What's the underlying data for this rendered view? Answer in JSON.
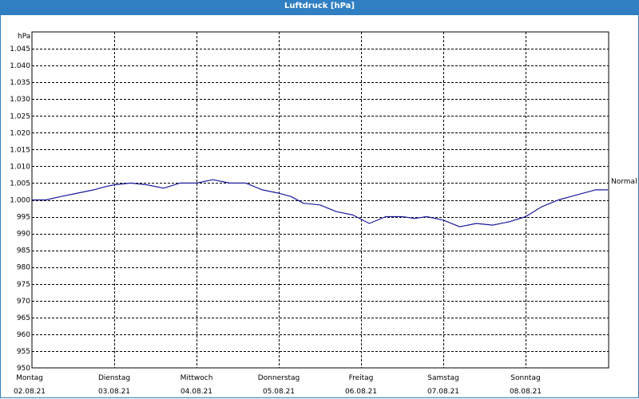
{
  "window": {
    "title": "Luftdruck [hPa]"
  },
  "colors": {
    "titlebar": "#2f7fc2",
    "series": "#1a1a9c",
    "grid": "#000000"
  },
  "chart_data": {
    "type": "line",
    "title": "Luftdruck [hPa]",
    "ylabel": "hPa",
    "ylim": [
      950,
      1050
    ],
    "yticks": [
      "1.045",
      "1.040",
      "1.035",
      "1.030",
      "1.025",
      "1.020",
      "1.015",
      "1.010",
      "1.005",
      "1.000",
      "995",
      "990",
      "985",
      "980",
      "975",
      "970",
      "965",
      "960",
      "955",
      "950"
    ],
    "ytick_values": [
      1045,
      1040,
      1035,
      1030,
      1025,
      1020,
      1015,
      1010,
      1005,
      1000,
      995,
      990,
      985,
      980,
      975,
      970,
      965,
      960,
      955,
      950
    ],
    "xlim": [
      0,
      7
    ],
    "xticks": [
      {
        "day": "Montag",
        "date": "02.08.21"
      },
      {
        "day": "Dienstag",
        "date": "03.08.21"
      },
      {
        "day": "Mittwoch",
        "date": "04.08.21"
      },
      {
        "day": "Donnerstag",
        "date": "05.08.21"
      },
      {
        "day": "Freitag",
        "date": "06.08.21"
      },
      {
        "day": "Samstag",
        "date": "07.08.21"
      },
      {
        "day": "Sonntag",
        "date": "08.08.21"
      }
    ],
    "grid": true,
    "series": [
      {
        "name": "Normal",
        "x": [
          0,
          0.17,
          0.35,
          0.55,
          0.75,
          0.9,
          1.0,
          1.2,
          1.4,
          1.6,
          1.8,
          2.0,
          2.2,
          2.4,
          2.6,
          2.8,
          3.0,
          3.15,
          3.3,
          3.5,
          3.7,
          3.9,
          4.1,
          4.3,
          4.5,
          4.65,
          4.8,
          5.0,
          5.2,
          5.4,
          5.6,
          5.8,
          6.0,
          6.2,
          6.4,
          6.55,
          6.7,
          6.85,
          7.0
        ],
        "values": [
          1000,
          1000,
          1001,
          1002,
          1003,
          1004,
          1004.5,
          1005,
          1004.5,
          1003.5,
          1005,
          1005,
          1006,
          1005,
          1005,
          1003,
          1002,
          1001,
          999,
          998.5,
          996.5,
          995.5,
          993,
          995,
          995,
          994.5,
          995,
          994,
          992,
          993,
          992.5,
          993.5,
          995,
          998,
          1000,
          1001,
          1002,
          1003,
          1003
        ]
      }
    ]
  }
}
